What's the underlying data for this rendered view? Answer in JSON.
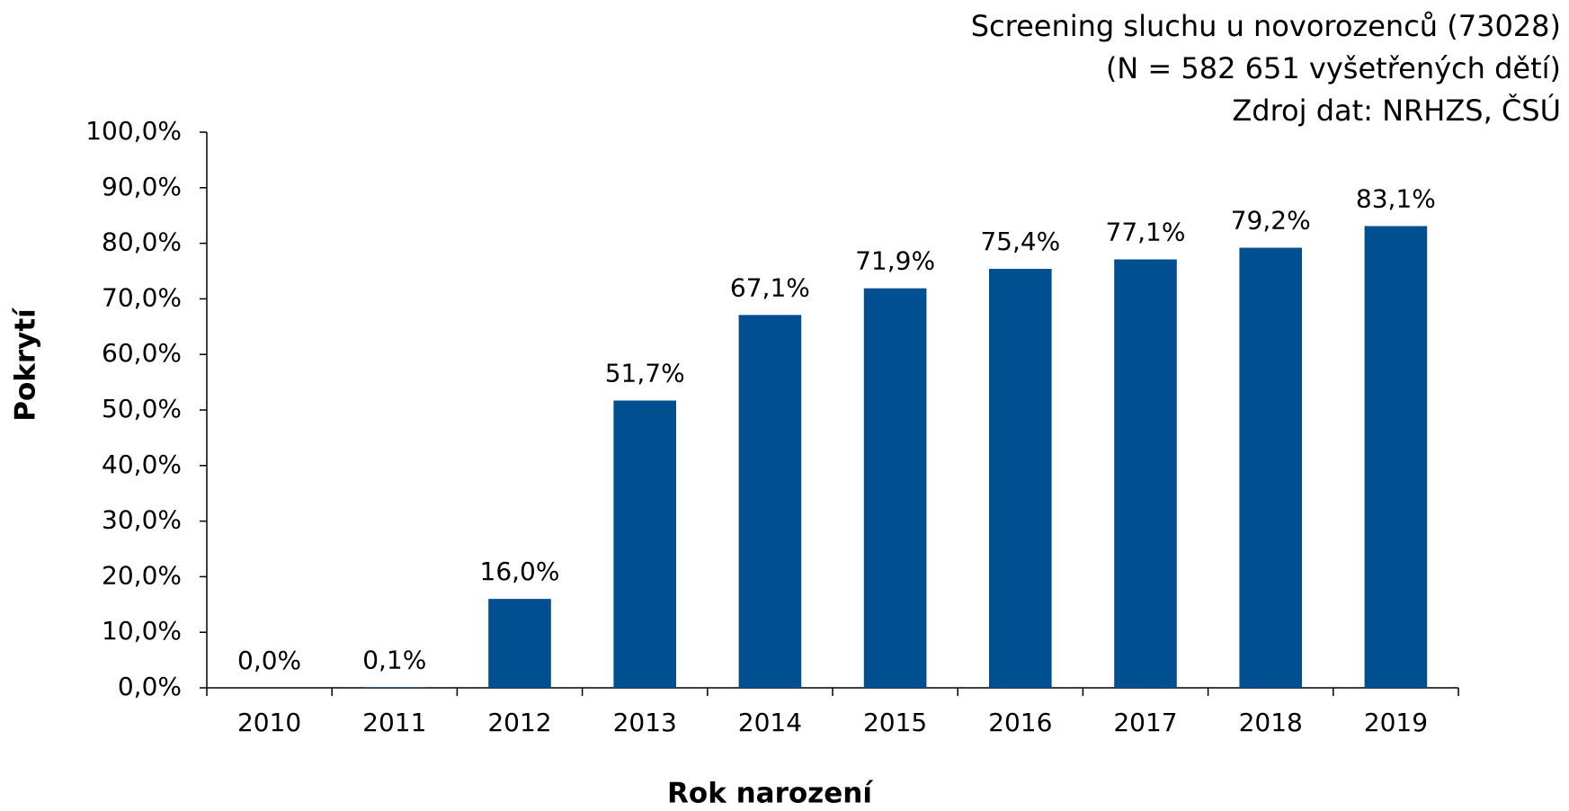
{
  "chart_data": {
    "type": "bar",
    "title": "Screening sluchu u novorozenců (73028)",
    "subtitle": "(N = 582 651 vyšetřených dětí)",
    "source": "Zdroj dat: NRHZS, ČSÚ",
    "x_label": "Rok narození",
    "y_label": "Pokrytí",
    "categories": [
      "2010",
      "2011",
      "2012",
      "2013",
      "2014",
      "2015",
      "2016",
      "2017",
      "2018",
      "2019"
    ],
    "values": [
      0,
      0.1,
      16,
      51.7,
      67.1,
      71.9,
      75.4,
      77.1,
      79.2,
      83.1
    ],
    "value_labels": [
      "0,0%",
      "0,1%",
      "16,0%",
      "51,7%",
      "67,1%",
      "71,9%",
      "75,4%",
      "77,1%",
      "79,2%",
      "83,1%"
    ],
    "color": "#004f91",
    "ylim": [
      0,
      100
    ],
    "yticks": [
      {
        "value": 0,
        "label": "0,0%"
      },
      {
        "value": 10,
        "label": "10,0%"
      },
      {
        "value": 20,
        "label": "20,0%"
      },
      {
        "value": 30,
        "label": "30,0%"
      },
      {
        "value": 40,
        "label": "40,0%"
      },
      {
        "value": 50,
        "label": "50,0%"
      },
      {
        "value": 60,
        "label": "60,0%"
      },
      {
        "value": 70,
        "label": "70,0%"
      },
      {
        "value": 80,
        "label": "80,0%"
      },
      {
        "value": 90,
        "label": "90,0%"
      },
      {
        "value": 100,
        "label": "100,0%"
      }
    ],
    "grid": false
  }
}
